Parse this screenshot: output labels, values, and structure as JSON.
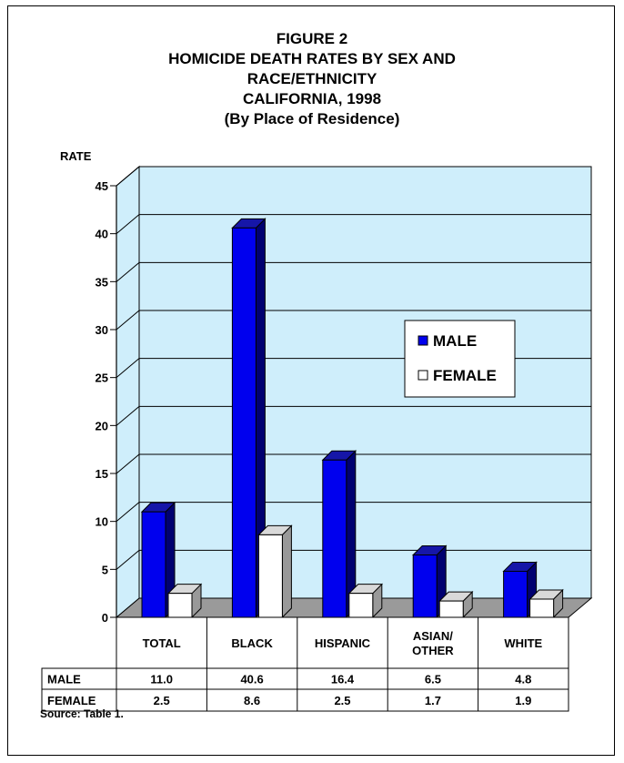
{
  "title_lines": [
    "FIGURE 2",
    "HOMICIDE DEATH RATES BY SEX AND",
    "RACE/ETHNICITY",
    "CALIFORNIA, 1998",
    "(By Place of Residence)"
  ],
  "source": "Source:  Table 1.",
  "chart_data": {
    "type": "bar",
    "title": "FIGURE 2 HOMICIDE DEATH RATES BY SEX AND RACE/ETHNICITY CALIFORNIA, 1998 (By Place of Residence)",
    "ylabel": "RATE",
    "xlabel": "",
    "ylim": [
      0,
      45
    ],
    "yticks": [
      0,
      5,
      10,
      15,
      20,
      25,
      30,
      35,
      40,
      45
    ],
    "grid": true,
    "legend_position": "right",
    "categories": [
      [
        "TOTAL"
      ],
      [
        "BLACK"
      ],
      [
        "HISPANIC"
      ],
      [
        "ASIAN/",
        "OTHER"
      ],
      [
        "WHITE"
      ]
    ],
    "series": [
      {
        "name": "MALE",
        "values": [
          11.0,
          40.6,
          16.4,
          6.5,
          4.8
        ],
        "labels": [
          "11.0",
          "40.6",
          "16.4",
          "6.5",
          "4.8"
        ],
        "color": "#0000ee"
      },
      {
        "name": "FEMALE",
        "values": [
          2.5,
          8.6,
          2.5,
          1.7,
          1.9
        ],
        "labels": [
          "2.5",
          "8.6",
          "2.5",
          "1.7",
          "1.9"
        ],
        "color": "#ffffff"
      }
    ],
    "colors": {
      "plot_bg": "#cfeefb",
      "male_top": "#1616a8",
      "male_side": "#000070",
      "female_side": "#999999",
      "female_top": "#d9d9d9"
    }
  }
}
